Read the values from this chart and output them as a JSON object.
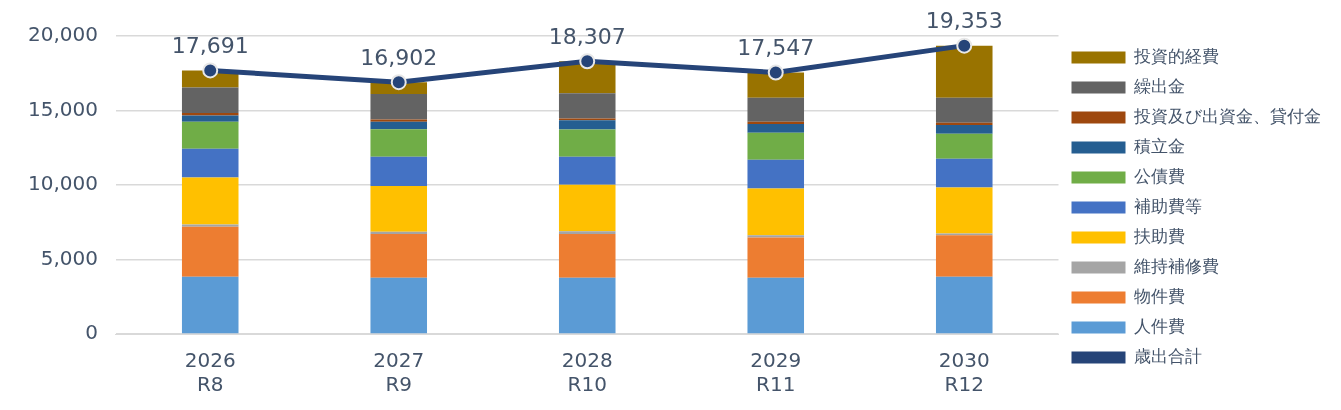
{
  "chart_data": {
    "type": "bar",
    "stacked": true,
    "categories": [
      "2026\nR8",
      "2027\nR9",
      "2028\nR10",
      "2029\nR11",
      "2030\nR12"
    ],
    "ylim": [
      0,
      20000
    ],
    "yticks": [
      0,
      {
        "value": 5000,
        "label": "5,000"
      },
      {
        "value": 10000,
        "label": "10,000"
      },
      {
        "value": 15000,
        "label": "15,000"
      },
      {
        "value": 20000,
        "label": "20,000"
      }
    ],
    "grid": "y",
    "legend": "right",
    "series": [
      {
        "name": "人件費",
        "color": "#5b9bd5",
        "values": [
          3850,
          3780,
          3780,
          3780,
          3850
        ]
      },
      {
        "name": "物件費",
        "color": "#ed7d31",
        "values": [
          3350,
          2930,
          2930,
          2690,
          2770
        ]
      },
      {
        "name": "維持補修費",
        "color": "#a5a5a5",
        "values": [
          150,
          150,
          180,
          150,
          120
        ]
      },
      {
        "name": "扶助費",
        "color": "#ffc000",
        "values": [
          3150,
          3080,
          3120,
          3150,
          3100
        ]
      },
      {
        "name": "補助費等",
        "color": "#4472c4",
        "values": [
          1930,
          1960,
          1890,
          1930,
          1930
        ]
      },
      {
        "name": "公債費",
        "color": "#70ad47",
        "values": [
          1810,
          1850,
          1830,
          1810,
          1670
        ]
      },
      {
        "name": "積立金",
        "color": "#255e91",
        "values": [
          420,
          490,
          610,
          590,
          580
        ]
      },
      {
        "name": "投資及び出資金、貸付金",
        "color": "#9e480e",
        "values": [
          170,
          150,
          120,
          140,
          150
        ]
      },
      {
        "name": "繰出金",
        "color": "#636363",
        "values": [
          1710,
          1710,
          1690,
          1620,
          1690
        ]
      },
      {
        "name": "投資的経費",
        "color": "#997300",
        "values": [
          1150,
          800,
          2160,
          1690,
          3490
        ]
      },
      {
        "name": "歳出合計",
        "type": "line",
        "color": "#264478",
        "marker": "circle",
        "line_style": "solid",
        "values": [
          17691,
          16902,
          18307,
          17547,
          19353
        ],
        "value_labels": [
          "17,691",
          "16,902",
          "18,307",
          "17,547",
          "19,353"
        ]
      }
    ]
  }
}
